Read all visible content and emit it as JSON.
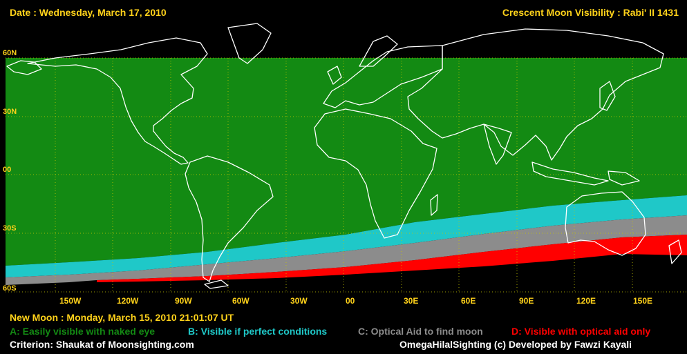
{
  "header": {
    "date": "Date : Wednesday, March 17, 2010",
    "title": "Crescent Moon Visibility : Rabi' II  1431"
  },
  "lat_labels": [
    "60N",
    "30N",
    "00",
    "30S",
    "60S"
  ],
  "lon_labels": [
    "150W",
    "120W",
    "90W",
    "60W",
    "30W",
    "00",
    "30E",
    "60E",
    "90E",
    "120E",
    "150E"
  ],
  "new_moon": "New Moon : Monday, March 15, 2010  21:01:07  UT",
  "legend": {
    "a": "A: Easily visible with naked eye",
    "b": "B: Visible if perfect conditions",
    "c": "C: Optical Aid to find moon",
    "d": "D: Visible with optical aid only"
  },
  "footer": {
    "criterion": "Criterion: Shaukat of Moonsighting.com",
    "credit": "OmegaHilalSighting  (c)  Developed by Fawzi Kayali"
  },
  "colors": {
    "zone_a": "#138a13",
    "zone_b": "#1fc8c8",
    "zone_c": "#8c8c8c",
    "zone_d": "#ff0000",
    "labels": "#ffd21a",
    "coast": "#ffffff"
  }
}
